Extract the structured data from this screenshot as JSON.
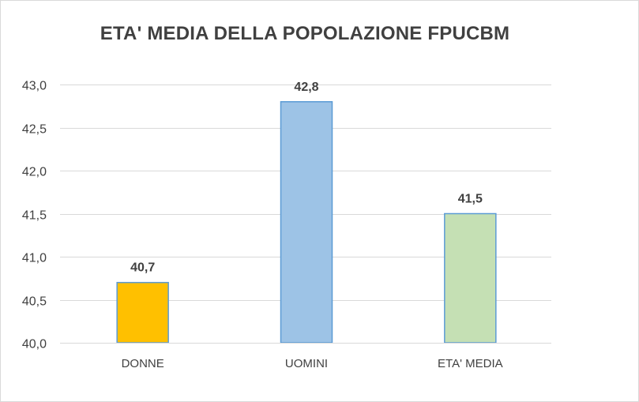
{
  "chart_data": {
    "type": "bar",
    "title": "ETA' MEDIA DELLA POPOLAZIONE FPUCBM",
    "xlabel": "",
    "ylabel": "",
    "categories": [
      "DONNE",
      "UOMINI",
      "ETA' MEDIA"
    ],
    "values": [
      40.7,
      42.8,
      41.5
    ],
    "value_labels": [
      "40,7",
      "42,8",
      "41,5"
    ],
    "bar_colors": [
      "#FFC000",
      "#9DC3E6",
      "#C5E0B4"
    ],
    "bar_border_color": "#5B9BD5",
    "ylim": [
      40.0,
      43.0
    ],
    "yticks": [
      40.0,
      40.5,
      41.0,
      41.5,
      42.0,
      42.5,
      43.0
    ],
    "ytick_labels": [
      "40,0",
      "40,5",
      "41,0",
      "41,5",
      "42,0",
      "42,5",
      "43,0"
    ],
    "grid": true,
    "legend": "none"
  }
}
